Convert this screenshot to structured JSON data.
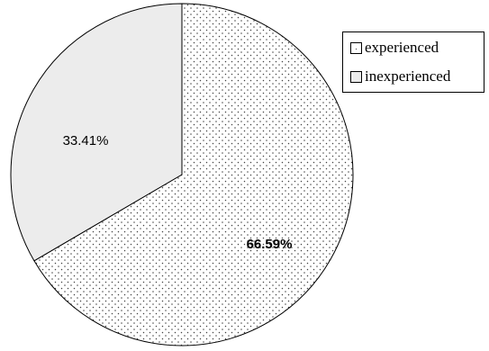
{
  "chart_data": {
    "type": "pie",
    "title": "",
    "slices": [
      {
        "label": "experienced",
        "value": 66.59,
        "value_label": "66.59%",
        "fill": "dotted",
        "color": "#ffffff"
      },
      {
        "label": "inexperienced",
        "value": 33.41,
        "value_label": "33.41%",
        "fill": "solid",
        "color": "#ececec"
      }
    ],
    "start_angle": "12 o'clock",
    "direction": "clockwise",
    "legend_position": "top-right",
    "grid": false
  }
}
